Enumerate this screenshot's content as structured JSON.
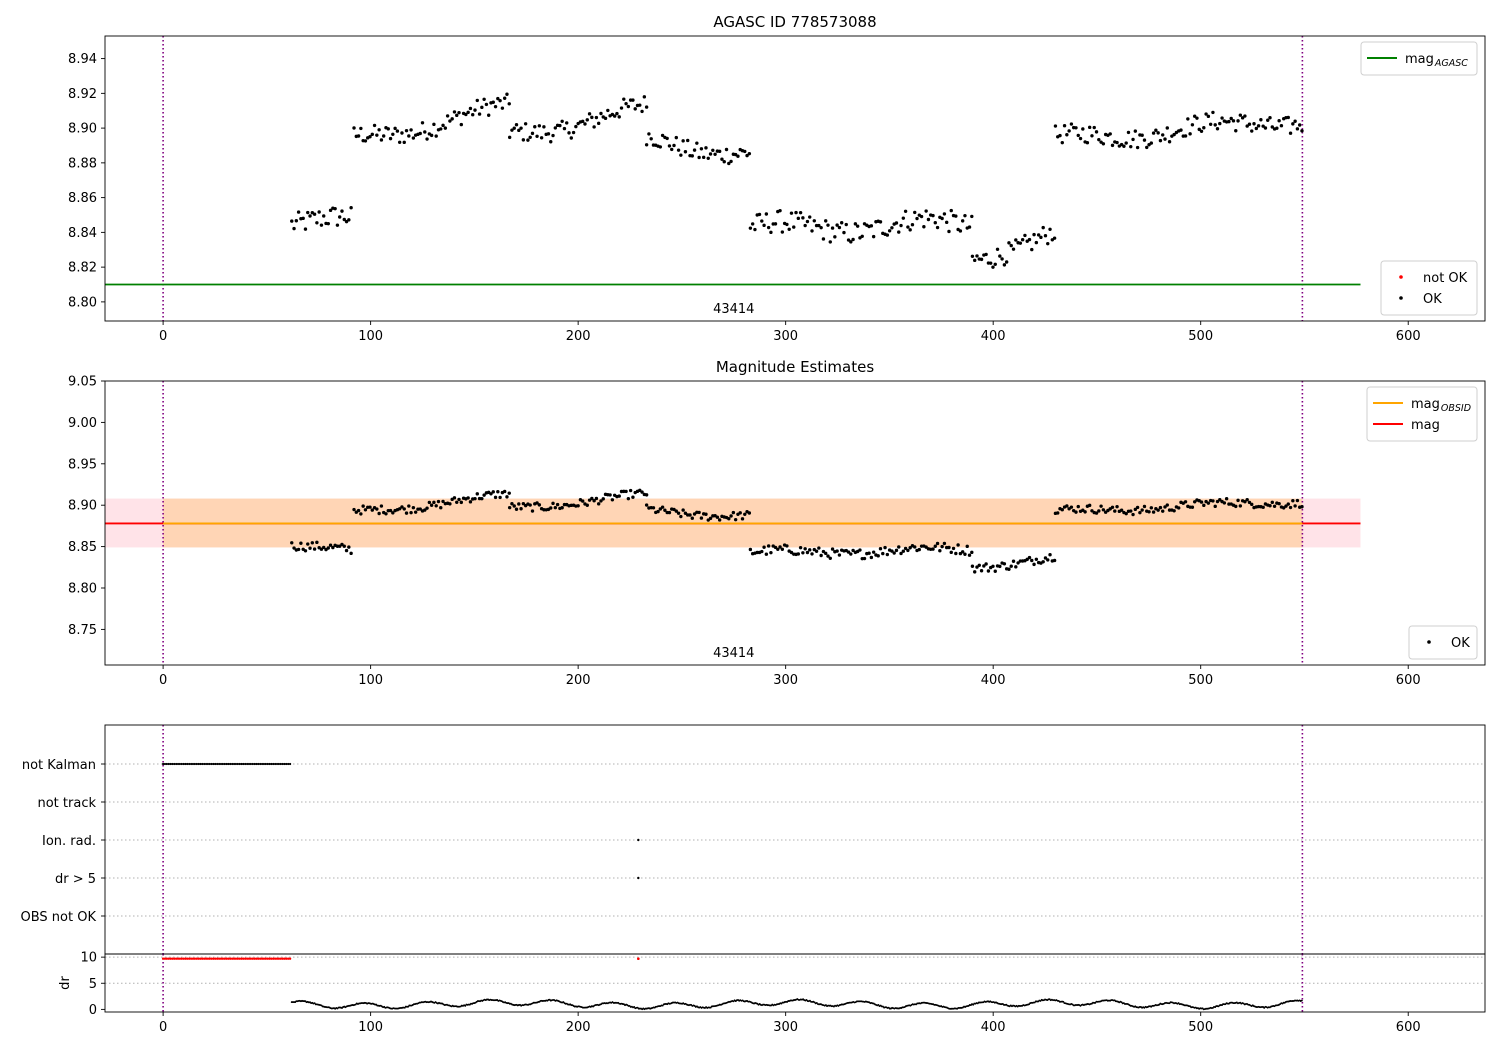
{
  "chart_data": [
    {
      "type": "scatter",
      "title": "AGASC ID 778573088",
      "xlabel": "",
      "ylabel": "",
      "xlim": [
        -28,
        637
      ],
      "ylim": [
        8.789,
        8.953
      ],
      "xticks": [
        0,
        100,
        200,
        300,
        400,
        500,
        600
      ],
      "yticks": [
        8.8,
        8.82,
        8.84,
        8.86,
        8.88,
        8.9,
        8.92,
        8.94
      ],
      "ytick_decimals": 2,
      "grid": false,
      "obsid_label": "43414",
      "obsid_label_x": 275,
      "vlines": [
        0,
        549
      ],
      "hlines": [
        {
          "name": "mag",
          "sub": "AGASC",
          "y": 8.81,
          "x0": -28,
          "x1": 577,
          "color": "#008000"
        }
      ],
      "legend_top": {
        "placement": "top-right",
        "entries": [
          {
            "label": "mag",
            "sub": "AGASC",
            "kind": "line",
            "color": "#008000"
          }
        ]
      },
      "legend_bottom": {
        "placement": "bottom-right",
        "entries": [
          {
            "label": "not OK",
            "kind": "dot",
            "color": "#ff0000"
          },
          {
            "label": "OK",
            "kind": "dot",
            "color": "#000000"
          }
        ]
      },
      "series": [
        {
          "name": "OK",
          "color": "#000000",
          "segments": [
            {
              "x": [
                62,
                91
              ],
              "y": [
                8.847,
                8.845
              ],
              "amp": 0.0065
            },
            {
              "x": [
                92,
                167
              ],
              "y": [
                8.893,
                8.912
              ],
              "amp": 0.0055
            },
            {
              "x": [
                167,
                233
              ],
              "y": [
                8.896,
                8.911
              ],
              "amp": 0.0055
            },
            {
              "x": [
                233,
                283
              ],
              "y": [
                8.893,
                8.885
              ],
              "amp": 0.0055
            },
            {
              "x": [
                283,
                390
              ],
              "y": [
                8.842,
                8.845
              ],
              "amp": 0.0065
            },
            {
              "x": [
                390,
                430
              ],
              "y": [
                8.826,
                8.838
              ],
              "amp": 0.006
            },
            {
              "x": [
                430,
                549
              ],
              "y": [
                8.893,
                8.905
              ],
              "amp": 0.0055
            }
          ]
        }
      ]
    },
    {
      "type": "scatter",
      "title": "Magnitude Estimates",
      "xlabel": "",
      "ylabel": "",
      "xlim": [
        -28,
        637
      ],
      "ylim": [
        8.707,
        9.05
      ],
      "xticks": [
        0,
        100,
        200,
        300,
        400,
        500,
        600
      ],
      "yticks": [
        8.75,
        8.8,
        8.85,
        8.9,
        8.95,
        9.0,
        9.05
      ],
      "ytick_decimals": 2,
      "grid": false,
      "obsid_label": "43414",
      "obsid_label_x": 275,
      "vlines": [
        0,
        549
      ],
      "bands": [
        {
          "y0": 8.849,
          "y1": 8.908,
          "x0": -28,
          "x1": 577,
          "color": "#ffc0cb",
          "opacity": 0.45
        },
        {
          "y0": 8.849,
          "y1": 8.908,
          "x0": 0,
          "x1": 549,
          "color": "#ffa500",
          "opacity": 0.22
        }
      ],
      "hlines": [
        {
          "name": "mag",
          "y": 8.878,
          "x0": -28,
          "x1": 577,
          "color": "#ff0000"
        },
        {
          "name": "mag",
          "sub": "OBSID",
          "y": 8.878,
          "x0": 0,
          "x1": 549,
          "color": "#ffa500"
        }
      ],
      "legend_top": {
        "placement": "top-right",
        "entries": [
          {
            "label": "mag",
            "sub": "OBSID",
            "kind": "line",
            "color": "#ffa500"
          },
          {
            "label": "mag",
            "kind": "line",
            "color": "#ff0000"
          }
        ]
      },
      "legend_bottom": {
        "placement": "bottom-right",
        "entries": [
          {
            "label": "OK",
            "kind": "dot",
            "color": "#000000"
          }
        ]
      },
      "series": [
        {
          "name": "OK",
          "color": "#000000",
          "segments": [
            {
              "x": [
                62,
                91
              ],
              "y": [
                8.853,
                8.843
              ],
              "amp": 0.0055
            },
            {
              "x": [
                92,
                167
              ],
              "y": [
                8.891,
                8.912
              ],
              "amp": 0.005
            },
            {
              "x": [
                167,
                233
              ],
              "y": [
                8.896,
                8.912
              ],
              "amp": 0.005
            },
            {
              "x": [
                233,
                283
              ],
              "y": [
                8.893,
                8.887
              ],
              "amp": 0.005
            },
            {
              "x": [
                283,
                390
              ],
              "y": [
                8.842,
                8.847
              ],
              "amp": 0.006
            },
            {
              "x": [
                390,
                430
              ],
              "y": [
                8.826,
                8.836
              ],
              "amp": 0.0055
            },
            {
              "x": [
                430,
                549
              ],
              "y": [
                8.892,
                8.905
              ],
              "amp": 0.005
            }
          ]
        }
      ]
    },
    {
      "type": "scatter",
      "title": "",
      "xlabel": "",
      "ylabel": "",
      "xlim": [
        -28,
        637
      ],
      "ylim": [
        0,
        6
      ],
      "xticks": [],
      "categories": [
        "not Kalman",
        "not track",
        "Ion. rad.",
        "dr > 5",
        "OBS not OK"
      ],
      "grid": true,
      "vlines": [
        0,
        549
      ],
      "series": [
        {
          "name": "not Kalman",
          "color": "#000000",
          "x_range": [
            0,
            62
          ]
        },
        {
          "name": "Ion. rad.",
          "color": "#000000",
          "x": [
            229
          ]
        },
        {
          "name": "dr > 5",
          "color": "#000000",
          "x": [
            229
          ]
        }
      ]
    },
    {
      "type": "scatter",
      "title": "",
      "xlabel": "",
      "ylabel": "dr",
      "xlim": [
        -28,
        637
      ],
      "ylim": [
        -0.5,
        10.6
      ],
      "xticks": [
        0,
        100,
        200,
        300,
        400,
        500,
        600
      ],
      "yticks": [
        0,
        5,
        10
      ],
      "ytick_decimals": 0,
      "grid": true,
      "vlines": [
        0,
        549
      ],
      "series": [
        {
          "name": "not OK",
          "color": "#ff0000",
          "x_range": [
            0,
            62
          ],
          "y": 9.7,
          "extra_x": [
            229
          ]
        },
        {
          "name": "OK",
          "color": "#000000",
          "segments": [
            {
              "x": [
                62,
                549
              ],
              "y_base": 1.0,
              "amp": 0.55
            }
          ]
        }
      ]
    }
  ]
}
